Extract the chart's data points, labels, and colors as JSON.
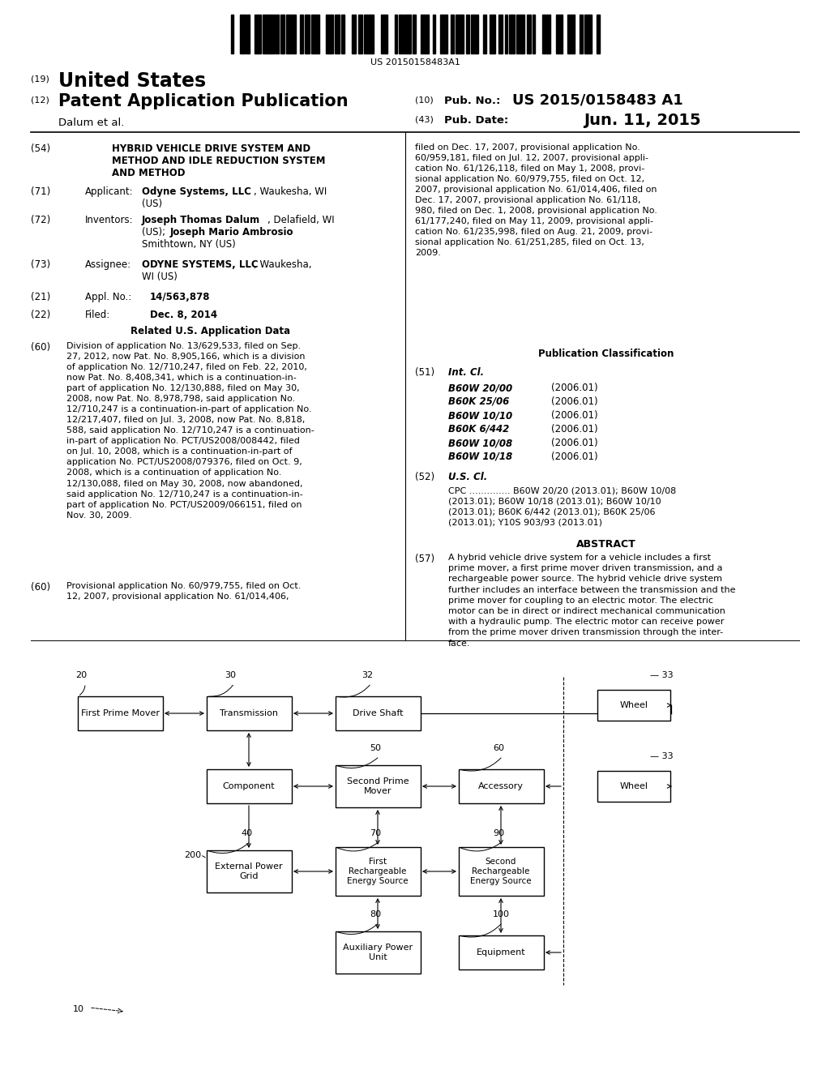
{
  "bg_color": "#ffffff",
  "barcode_text": "US 20150158483A1",
  "right_60_text": "filed on Dec. 17, 2007, provisional application No.\n60/959,181, filed on Jul. 12, 2007, provisional appli-\ncation No. 61/126,118, filed on May 1, 2008, provi-\nsional application No. 60/979,755, filed on Oct. 12,\n2007, provisional application No. 61/014,406, filed on\nDec. 17, 2007, provisional application No. 61/118,\n980, filed on Dec. 1, 2008, provisional application No.\n61/177,240, filed on May 11, 2009, provisional appli-\ncation No. 61/235,998, filed on Aug. 21, 2009, provi-\nsional application No. 61/251,285, filed on Oct. 13,\n2009.",
  "related_60_text": "Division of application No. 13/629,533, filed on Sep.\n27, 2012, now Pat. No. 8,905,166, which is a division\nof application No. 12/710,247, filed on Feb. 22, 2010,\nnow Pat. No. 8,408,341, which is a continuation-in-\npart of application No. 12/130,888, filed on May 30,\n2008, now Pat. No. 8,978,798, said application No.\n12/710,247 is a continuation-in-part of application No.\n12/217,407, filed on Jul. 3, 2008, now Pat. No. 8,818,\n588, said application No. 12/710,247 is a continuation-\nin-part of application No. PCT/US2008/008442, filed\non Jul. 10, 2008, which is a continuation-in-part of\napplication No. PCT/US2008/079376, filed on Oct. 9,\n2008, which is a continuation of application No.\n12/130,088, filed on May 30, 2008, now abandoned,\nsaid application No. 12/710,247 is a continuation-in-\npart of application No. PCT/US2009/066151, filed on\nNov. 30, 2009.",
  "related_60b_text": "Provisional application No. 60/979,755, filed on Oct.\n12, 2007, provisional application No. 61/014,406,",
  "int_cl_items": [
    [
      "B60W 20/00",
      "(2006.01)"
    ],
    [
      "B60K 25/06",
      "(2006.01)"
    ],
    [
      "B60W 10/10",
      "(2006.01)"
    ],
    [
      "B60K 6/442",
      "(2006.01)"
    ],
    [
      "B60W 10/08",
      "(2006.01)"
    ],
    [
      "B60W 10/18",
      "(2006.01)"
    ]
  ],
  "us_cl_text": "CPC .............. B60W 20/20 (2013.01); B60W 10/08\n(2013.01); B60W 10/18 (2013.01); B60W 10/10\n(2013.01); B60K 6/442 (2013.01); B60K 25/06\n(2013.01); Y10S 903/93 (2013.01)",
  "abstract_text": "A hybrid vehicle drive system for a vehicle includes a first\nprime mover, a first prime mover driven transmission, and a\nrechargeable power source. The hybrid vehicle drive system\nfurther includes an interface between the transmission and the\nprime mover for coupling to an electric motor. The electric\nmotor can be in direct or indirect mechanical communication\nwith a hydraulic pump. The electric motor can receive power\nfrom the prime mover driven transmission through the inter-\nface."
}
